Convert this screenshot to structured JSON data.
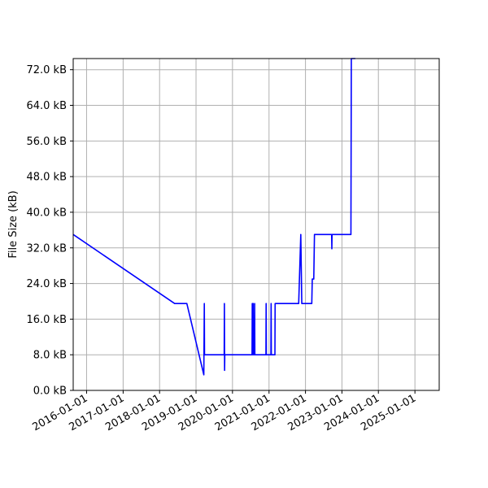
{
  "chart_data": {
    "type": "line",
    "title": "",
    "xlabel": "",
    "ylabel": "File Size (kB)",
    "grid": true,
    "line_color": "#0000ff",
    "xlim": [
      "2015-08-20",
      "2025-09-01"
    ],
    "ylim": [
      0,
      74.5
    ],
    "y_ticks": [
      {
        "value": 0,
        "label": "0.0 kB"
      },
      {
        "value": 8,
        "label": "8.0 kB"
      },
      {
        "value": 16,
        "label": "16.0 kB"
      },
      {
        "value": 24,
        "label": "24.0 kB"
      },
      {
        "value": 32,
        "label": "32.0 kB"
      },
      {
        "value": 40,
        "label": "40.0 kB"
      },
      {
        "value": 48,
        "label": "48.0 kB"
      },
      {
        "value": 56,
        "label": "56.0 kB"
      },
      {
        "value": 64,
        "label": "64.0 kB"
      },
      {
        "value": 72,
        "label": "72.0 kB"
      }
    ],
    "x_ticks": [
      "2016-01-01",
      "2017-01-01",
      "2018-01-01",
      "2019-01-01",
      "2020-01-01",
      "2021-01-01",
      "2022-01-01",
      "2023-01-01",
      "2024-01-01",
      "2025-01-01"
    ],
    "series": [
      {
        "points": [
          [
            "2015-08-20",
            35.0
          ],
          [
            "2018-06-01",
            19.5
          ],
          [
            "2018-10-01",
            19.5
          ],
          [
            "2019-03-20",
            3.5
          ],
          [
            "2019-03-25",
            19.5
          ],
          [
            "2019-03-27",
            8.0
          ],
          [
            "2019-10-10",
            8.0
          ],
          [
            "2019-10-12",
            19.5
          ],
          [
            "2019-10-14",
            4.5
          ],
          [
            "2019-10-16",
            8.0
          ],
          [
            "2020-07-15",
            8.0
          ],
          [
            "2020-07-17",
            19.5
          ],
          [
            "2020-07-19",
            8.0
          ],
          [
            "2020-07-24",
            8.0
          ],
          [
            "2020-07-26",
            19.5
          ],
          [
            "2020-07-28",
            8.0
          ],
          [
            "2020-08-08",
            8.0
          ],
          [
            "2020-08-10",
            19.5
          ],
          [
            "2020-08-12",
            8.0
          ],
          [
            "2020-12-01",
            8.0
          ],
          [
            "2020-12-03",
            19.5
          ],
          [
            "2020-12-05",
            8.0
          ],
          [
            "2021-01-20",
            8.0
          ],
          [
            "2021-01-22",
            19.5
          ],
          [
            "2021-01-24",
            8.0
          ],
          [
            "2021-03-01",
            8.0
          ],
          [
            "2021-03-03",
            19.5
          ],
          [
            "2021-10-25",
            19.5
          ],
          [
            "2021-11-15",
            35.0
          ],
          [
            "2021-11-25",
            19.5
          ],
          [
            "2022-03-05",
            19.5
          ],
          [
            "2022-03-10",
            25.0
          ],
          [
            "2022-03-25",
            25.0
          ],
          [
            "2022-04-01",
            35.0
          ],
          [
            "2022-09-20",
            35.0
          ],
          [
            "2022-09-22",
            31.8
          ],
          [
            "2022-09-24",
            35.0
          ],
          [
            "2023-04-01",
            35.0
          ],
          [
            "2023-04-05",
            74.5
          ],
          [
            "2023-05-15",
            74.5
          ]
        ]
      }
    ]
  }
}
